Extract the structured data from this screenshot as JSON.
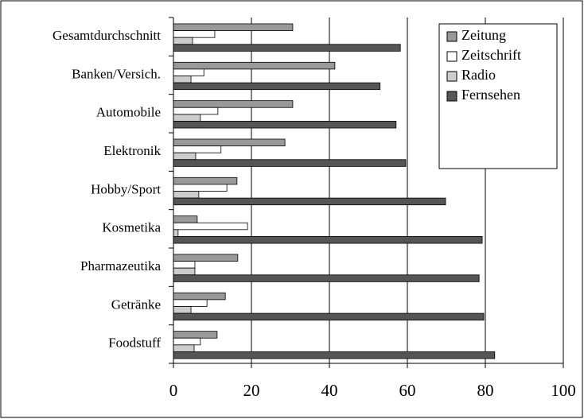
{
  "chart_data": {
    "type": "barh",
    "categories": [
      "Gesamtdurchschnitt",
      "Banken/Versich.",
      "Automobile",
      "Elektronik",
      "Hobby/Sport",
      "Kosmetika",
      "Pharmazeutika",
      "Getränke",
      "Foodstuff"
    ],
    "series": [
      {
        "name": "Zeitung",
        "color": "#999999",
        "values": [
          30.6,
          41.4,
          30.6,
          28.6,
          16.3,
          6.1,
          16.5,
          13.3,
          11.2
        ]
      },
      {
        "name": "Zeitschrift",
        "color": "#ffffff",
        "values": [
          10.6,
          7.8,
          11.4,
          12.2,
          13.7,
          19.0,
          5.5,
          8.6,
          6.9
        ]
      },
      {
        "name": "Radio",
        "color": "#cccccc",
        "values": [
          4.9,
          4.5,
          6.9,
          5.7,
          6.5,
          1.2,
          5.5,
          4.5,
          5.3
        ]
      },
      {
        "name": "Fernsehen",
        "color": "#555555",
        "values": [
          58.2,
          53.0,
          57.1,
          59.6,
          69.8,
          79.2,
          78.4,
          79.6,
          82.4
        ]
      }
    ],
    "xlim": [
      0,
      100
    ],
    "xticks": [
      0,
      20,
      40,
      60,
      80,
      100
    ],
    "grid": true,
    "legend": "upper right"
  }
}
